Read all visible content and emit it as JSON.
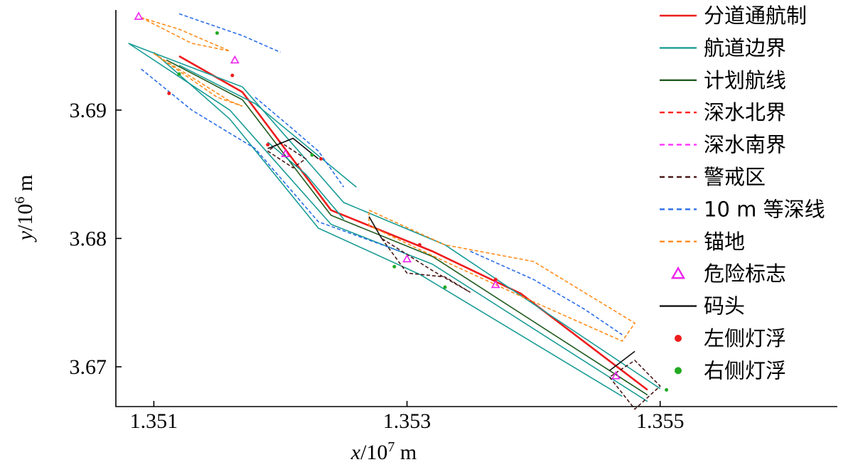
{
  "chart_data": {
    "type": "line",
    "xlabel": {
      "var": "x",
      "unit": "/10",
      "exp": "7",
      "suffix": " m"
    },
    "ylabel": {
      "var": "y",
      "unit": "/10",
      "exp": "6",
      "suffix": " m"
    },
    "xlim": [
      1.3507,
      1.3564
    ],
    "ylim": [
      3.6669,
      3.6978
    ],
    "xticks": [
      "1.351",
      "1.353",
      "1.355"
    ],
    "xtick_values": [
      1.351,
      1.353,
      1.355
    ],
    "yticks": [
      "3.69",
      "3.68",
      "3.67"
    ],
    "ytick_values": [
      3.69,
      3.68,
      3.67
    ],
    "legend_position": "right",
    "legend": [
      {
        "label": "分道通航制",
        "style": "solid",
        "color": "#ee1c1c",
        "key": "tss"
      },
      {
        "label": "航道边界",
        "style": "solid",
        "color": "#1a9c96",
        "key": "boundary"
      },
      {
        "label": "计划航线",
        "style": "solid",
        "color": "#1f5a1f",
        "key": "route"
      },
      {
        "label": "深水北界",
        "style": "dashed",
        "color": "#ff2020",
        "key": "deep_north"
      },
      {
        "label": "深水南界",
        "style": "dashed",
        "color": "#ff33ff",
        "key": "deep_south"
      },
      {
        "label": "警戒区",
        "style": "dashed",
        "color": "#4a1a1a",
        "key": "caution"
      },
      {
        "label": "10 m 等深线",
        "style": "dashed",
        "color": "#2a6ee8",
        "key": "contour"
      },
      {
        "label": "锚地",
        "style": "dashed",
        "color": "#ff8c1a",
        "key": "anchorage"
      },
      {
        "label": "危险标志",
        "style": "triangle",
        "color": "#ee22ee",
        "key": "danger"
      },
      {
        "label": "码头",
        "style": "solid",
        "color": "#111111",
        "key": "wharf"
      },
      {
        "label": "左侧灯浮",
        "style": "dot",
        "color": "#ee1c1c",
        "key": "left_buoy"
      },
      {
        "label": "右侧灯浮",
        "style": "dot",
        "color": "#22aa22",
        "key": "right_buoy"
      }
    ],
    "series": [
      {
        "key": "tss",
        "values": [
          [
            1.3512,
            3.6942
          ],
          [
            1.3517,
            3.6914
          ],
          [
            1.3524,
            3.6822
          ],
          [
            1.3532,
            3.679
          ],
          [
            1.3539,
            3.6757
          ],
          [
            1.3549,
            3.6682
          ]
        ]
      },
      {
        "key": "route",
        "values": [
          [
            1.3511,
            3.6939
          ],
          [
            1.3517,
            3.6908
          ],
          [
            1.3524,
            3.6818
          ],
          [
            1.3532,
            3.6786
          ],
          [
            1.3549,
            3.6678
          ]
        ]
      },
      {
        "key": "boundary",
        "values": [
          [
            1.3508,
            3.6952
          ],
          [
            1.3517,
            3.6918
          ],
          [
            1.3525,
            3.6828
          ],
          [
            1.3533,
            3.6795
          ],
          [
            1.355,
            3.6683
          ]
        ]
      },
      {
        "key": "boundary",
        "values": [
          [
            1.3508,
            3.6952
          ],
          [
            1.3516,
            3.69
          ],
          [
            1.3524,
            3.6811
          ],
          [
            1.3532,
            3.678
          ],
          [
            1.3549,
            3.6673
          ]
        ]
      },
      {
        "key": "boundary",
        "values": [
          [
            1.351,
            3.6945
          ],
          [
            1.3516,
            3.6893
          ],
          [
            1.3523,
            3.6808
          ],
          [
            1.3531,
            3.6772
          ],
          [
            1.3547,
            3.6677
          ]
        ]
      },
      {
        "key": "boundary",
        "values": [
          [
            1.3512,
            3.6935
          ],
          [
            1.3518,
            3.6905
          ],
          [
            1.3526,
            3.684
          ]
        ]
      },
      {
        "key": "boundary",
        "values": [
          [
            1.3519,
            3.6875
          ],
          [
            1.3522,
            3.685
          ],
          [
            1.3525,
            3.6815
          ]
        ]
      },
      {
        "key": "contour",
        "values": [
          [
            1.3512,
            3.6975
          ],
          [
            1.3517,
            3.6958
          ],
          [
            1.352,
            3.6945
          ]
        ]
      },
      {
        "key": "contour",
        "values": [
          [
            1.3518,
            3.691
          ],
          [
            1.3521,
            3.6885
          ],
          [
            1.3523,
            3.6868
          ],
          [
            1.3525,
            3.684
          ]
        ]
      },
      {
        "key": "contour",
        "values": [
          [
            1.3535,
            3.679
          ],
          [
            1.354,
            3.6768
          ],
          [
            1.3544,
            3.6745
          ],
          [
            1.3547,
            3.6725
          ]
        ]
      },
      {
        "key": "contour",
        "values": [
          [
            1.3509,
            3.6932
          ],
          [
            1.3513,
            3.69
          ],
          [
            1.3518,
            3.687
          ],
          [
            1.3523,
            3.6813
          ],
          [
            1.353,
            3.6788
          ]
        ]
      },
      {
        "key": "anchorage",
        "values": [
          [
            1.3509,
            3.6972
          ],
          [
            1.3513,
            3.6952
          ],
          [
            1.3516,
            3.6946
          ],
          [
            1.3512,
            3.6963
          ],
          [
            1.3509,
            3.6972
          ]
        ]
      },
      {
        "key": "anchorage",
        "values": [
          [
            1.351,
            3.6944
          ],
          [
            1.3516,
            3.6907
          ],
          [
            1.3517,
            3.6903
          ],
          [
            1.3515,
            3.691
          ],
          [
            1.351,
            3.6944
          ]
        ]
      },
      {
        "key": "anchorage",
        "values": [
          [
            1.3527,
            3.6822
          ],
          [
            1.3533,
            3.6795
          ],
          [
            1.354,
            3.6782
          ],
          [
            1.3548,
            3.6734
          ],
          [
            1.3547,
            3.672
          ],
          [
            1.3539,
            3.6755
          ],
          [
            1.3533,
            3.6782
          ],
          [
            1.3527,
            3.681
          ],
          [
            1.3527,
            3.6822
          ]
        ]
      },
      {
        "key": "caution",
        "values": [
          [
            1.3528,
            3.68
          ],
          [
            1.353,
            3.6773
          ],
          [
            1.3533,
            3.677
          ],
          [
            1.3535,
            3.6758
          ],
          [
            1.3532,
            3.6775
          ],
          [
            1.3528,
            3.68
          ]
        ]
      },
      {
        "key": "caution",
        "values": [
          [
            1.3546,
            3.6692
          ],
          [
            1.3548,
            3.6667
          ],
          [
            1.355,
            3.6685
          ],
          [
            1.3548,
            3.6705
          ],
          [
            1.3546,
            3.6692
          ]
        ]
      },
      {
        "key": "caution",
        "values": [
          [
            1.3519,
            3.6868
          ],
          [
            1.3521,
            3.6855
          ],
          [
            1.3522,
            3.6862
          ],
          [
            1.352,
            3.6875
          ],
          [
            1.3519,
            3.6868
          ]
        ]
      },
      {
        "key": "wharf",
        "values": [
          [
            1.3519,
            3.687
          ],
          [
            1.3521,
            3.6878
          ],
          [
            1.3523,
            3.6862
          ]
        ]
      },
      {
        "key": "wharf",
        "values": [
          [
            1.3527,
            3.6817
          ],
          [
            1.3528,
            3.68
          ]
        ]
      },
      {
        "key": "wharf",
        "values": [
          [
            1.3546,
            3.6697
          ],
          [
            1.3548,
            3.6712
          ]
        ]
      }
    ],
    "markers": [
      {
        "key": "danger",
        "points": [
          [
            1.35088,
            3.6973
          ],
          [
            1.35164,
            3.6939
          ],
          [
            1.35204,
            3.6866
          ],
          [
            1.353,
            3.6784
          ],
          [
            1.3537,
            3.6764
          ],
          [
            1.35465,
            3.6693
          ]
        ]
      },
      {
        "key": "left_buoy",
        "points": [
          [
            1.35112,
            3.6913
          ],
          [
            1.35162,
            3.6927
          ],
          [
            1.3519,
            3.6873
          ],
          [
            1.35232,
            3.6862
          ],
          [
            1.3531,
            3.6795
          ],
          [
            1.3537,
            3.6768
          ]
        ]
      },
      {
        "key": "right_buoy",
        "points": [
          [
            1.3512,
            3.6928
          ],
          [
            1.3515,
            3.696
          ],
          [
            1.35225,
            3.6865
          ],
          [
            1.3529,
            3.6778
          ],
          [
            1.3533,
            3.6762
          ],
          [
            1.35505,
            3.6682
          ]
        ]
      }
    ]
  }
}
